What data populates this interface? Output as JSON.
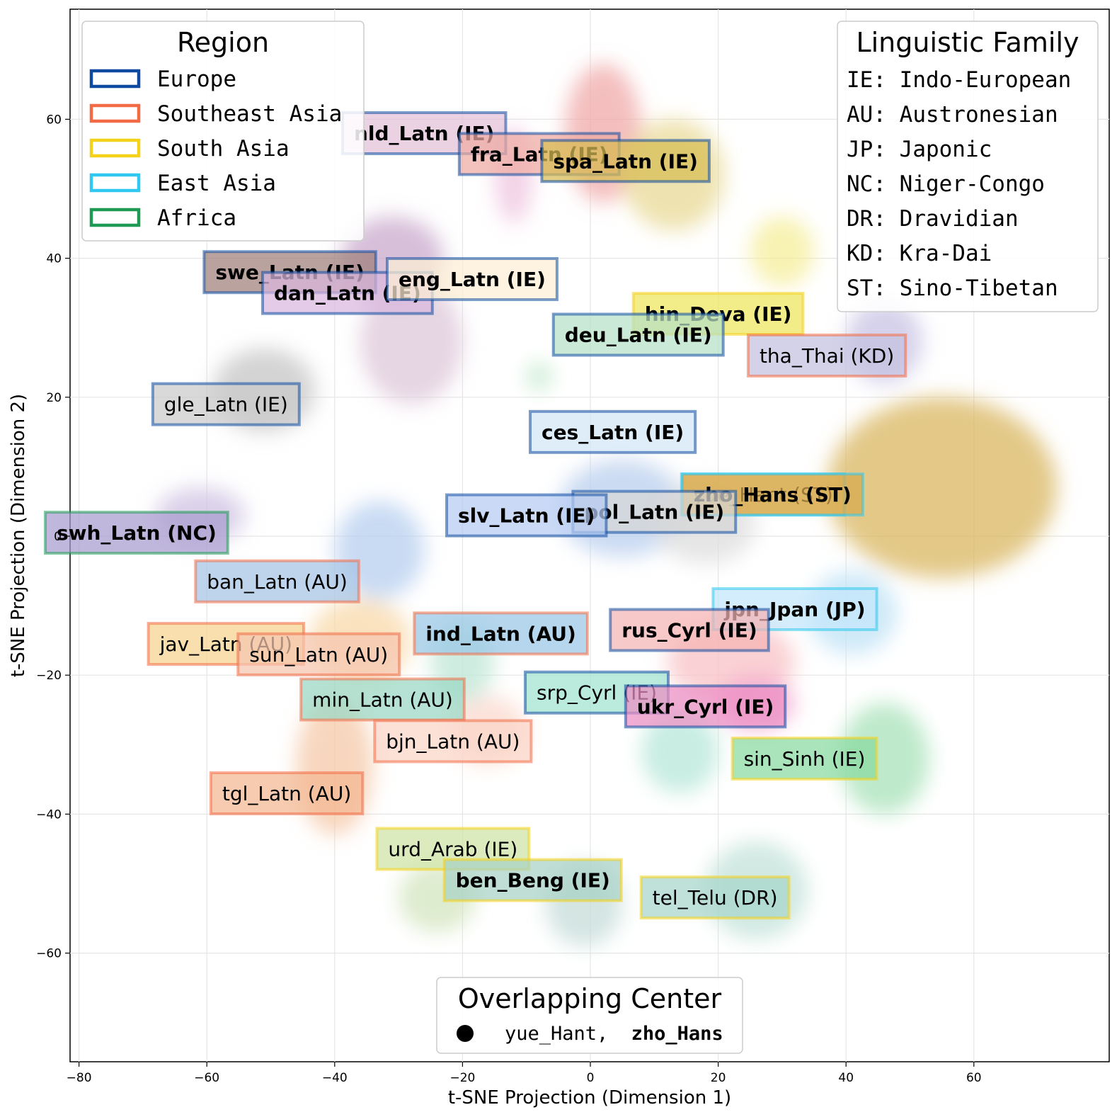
{
  "chart_data": {
    "type": "scatter",
    "xlabel": "t-SNE Projection (Dimension 1)",
    "ylabel": "t-SNE Projection (Dimension 2)",
    "xlim": [
      -82,
      80
    ],
    "ylim": [
      -75,
      75
    ],
    "xticks": [
      -80,
      -60,
      -40,
      -20,
      0,
      20,
      40,
      60
    ],
    "yticks": [
      -60,
      -40,
      -20,
      0,
      20,
      40,
      60
    ],
    "tick_labels_x": [
      "−80",
      "−60",
      "−40",
      "−20",
      "0",
      "20",
      "40",
      "60"
    ],
    "tick_labels_y": [
      "−60",
      "−40",
      "−20",
      "0",
      "20",
      "40",
      "60"
    ],
    "grid": true,
    "region_colors": {
      "Europe": "#0d4aa0",
      "Southeast Asia": "#f26b45",
      "South Asia": "#f5d21a",
      "East Asia": "#2ec8f0",
      "Africa": "#1f9a55"
    },
    "labels": [
      {
        "text": "nld_Latn (IE)",
        "x": -26,
        "y": 58,
        "region": "Europe",
        "fill": "#e3c0d8",
        "bold": true
      },
      {
        "text": "fra_Latn (IE)",
        "x": -8,
        "y": 55,
        "region": "Europe",
        "fill": "#efaaa2",
        "bold": true
      },
      {
        "text": "spa_Latn (IE)",
        "x": 5.5,
        "y": 54,
        "region": "Europe",
        "fill": "#d8be55",
        "bold": true
      },
      {
        "text": "swe_Latn (IE)",
        "x": -47,
        "y": 38,
        "region": "Europe",
        "fill": "#a0807a",
        "bold": true
      },
      {
        "text": "dan_Latn (IE)",
        "x": -38,
        "y": 35,
        "region": "Europe",
        "fill": "#dab7de",
        "bold": true
      },
      {
        "text": "eng_Latn (IE)",
        "x": -18.5,
        "y": 37,
        "region": "Europe",
        "fill": "#fcefd4",
        "bold": true
      },
      {
        "text": "hin_Deva (IE)",
        "x": 20,
        "y": 32,
        "region": "South Asia",
        "fill": "#ede55b",
        "bold": true
      },
      {
        "text": "deu_Latn (IE)",
        "x": 7.5,
        "y": 29,
        "region": "Europe",
        "fill": "#b6e0c6",
        "bold": true
      },
      {
        "text": "tha_Thai (KD)",
        "x": 37,
        "y": 26,
        "region": "Southeast Asia",
        "fill": "#c3c0e0",
        "bold": false
      },
      {
        "text": "gle_Latn (IE)",
        "x": -57,
        "y": 19,
        "region": "Europe",
        "fill": "#cacaca",
        "bold": false
      },
      {
        "text": "ces_Latn (IE)",
        "x": 3.5,
        "y": 15,
        "region": "Europe",
        "fill": "#d2e6f6",
        "bold": true
      },
      {
        "text": "yue_Hant (ST)",
        "x": 27,
        "y": 6,
        "region": "East Asia",
        "fill": "#e8c67a",
        "bold": false
      },
      {
        "text": "zho_Hans (ST)",
        "x": 28.5,
        "y": 6,
        "region": "East Asia",
        "fill": "#d7a94e",
        "bold": true
      },
      {
        "text": "pol_Latn (IE)",
        "x": 10,
        "y": 3.5,
        "region": "Europe",
        "fill": "#d6d6d6",
        "bold": true
      },
      {
        "text": "slv_Latn (IE)",
        "x": -10,
        "y": 3,
        "region": "Europe",
        "fill": "#b5ccf2",
        "bold": true
      },
      {
        "text": "swh_Latn (NC)",
        "x": -71,
        "y": 0.5,
        "region": "Africa",
        "fill": "#a89bcf",
        "bold": true
      },
      {
        "text": "ban_Latn (AU)",
        "x": -49,
        "y": -6.5,
        "region": "Southeast Asia",
        "fill": "#a5c3e5",
        "bold": false
      },
      {
        "text": "jpn_Jpan (JP)",
        "x": 32,
        "y": -10.5,
        "region": "East Asia",
        "fill": "#c3e6fb",
        "bold": true
      },
      {
        "text": "rus_Cyrl (IE)",
        "x": 15.5,
        "y": -13.5,
        "region": "Europe",
        "fill": "#f5b4b4",
        "bold": true
      },
      {
        "text": "ind_Latn (AU)",
        "x": -14,
        "y": -14,
        "region": "Southeast Asia",
        "fill": "#99c6e6",
        "bold": true
      },
      {
        "text": "jav_Latn (AU)",
        "x": -57,
        "y": -15.5,
        "region": "Southeast Asia",
        "fill": "#f7d28e",
        "bold": false
      },
      {
        "text": "sun_Latn (AU)",
        "x": -42.5,
        "y": -17,
        "region": "Southeast Asia",
        "fill": "#f5c6b0",
        "bold": false
      },
      {
        "text": "srp_Cyrl (IE)",
        "x": 1,
        "y": -22.5,
        "region": "Europe",
        "fill": "#9fe3cf",
        "bold": false
      },
      {
        "text": "min_Latn (AU)",
        "x": -32.5,
        "y": -23.5,
        "region": "Southeast Asia",
        "fill": "#98d7c3",
        "bold": false
      },
      {
        "text": "ukr_Cyrl (IE)",
        "x": 18,
        "y": -24.5,
        "region": "Europe",
        "fill": "#ec8ec4",
        "bold": true
      },
      {
        "text": "bjn_Latn (AU)",
        "x": -21.5,
        "y": -29.5,
        "region": "Southeast Asia",
        "fill": "#fbd5c7",
        "bold": false
      },
      {
        "text": "sin_Sinh (IE)",
        "x": 33.5,
        "y": -32,
        "region": "South Asia",
        "fill": "#88d9a0",
        "bold": false
      },
      {
        "text": "tgl_Latn (AU)",
        "x": -47.5,
        "y": -37,
        "region": "Southeast Asia",
        "fill": "#f2b792",
        "bold": false
      },
      {
        "text": "urd_Arab (IE)",
        "x": -21.5,
        "y": -45,
        "region": "South Asia",
        "fill": "#cde3a3",
        "bold": false
      },
      {
        "text": "ben_Beng (IE)",
        "x": -9,
        "y": -49.5,
        "region": "South Asia",
        "fill": "#a8d1c5",
        "bold": true
      },
      {
        "text": "tel_Telu (DR)",
        "x": 19.5,
        "y": -52,
        "region": "South Asia",
        "fill": "#a6d5cb",
        "bold": false
      }
    ],
    "clusters": [
      {
        "x": 55,
        "y": 7,
        "rx": 18,
        "ry": 13,
        "color": "#d9b560"
      },
      {
        "x": 2,
        "y": 58,
        "rx": 6,
        "ry": 10,
        "color": "#f0a8a8"
      },
      {
        "x": 13,
        "y": 52,
        "rx": 8,
        "ry": 8,
        "color": "#e8da95"
      },
      {
        "x": -31,
        "y": 40,
        "rx": 8,
        "ry": 6,
        "color": "#c9a9cc"
      },
      {
        "x": -28,
        "y": 28,
        "rx": 8,
        "ry": 9,
        "color": "#ddc7d8"
      },
      {
        "x": -12,
        "y": 52,
        "rx": 3,
        "ry": 7,
        "color": "#efc4df"
      },
      {
        "x": 30,
        "y": 41,
        "rx": 5,
        "ry": 5,
        "color": "#f6ed9a"
      },
      {
        "x": 46,
        "y": 28,
        "rx": 6,
        "ry": 6,
        "color": "#c9c3e4"
      },
      {
        "x": -51,
        "y": 21,
        "rx": 8,
        "ry": 6,
        "color": "#c6c6c6"
      },
      {
        "x": -61,
        "y": 3,
        "rx": 7,
        "ry": 4,
        "color": "#cfc2e2"
      },
      {
        "x": -33,
        "y": -2,
        "rx": 7,
        "ry": 7,
        "color": "#b7cfef"
      },
      {
        "x": 5,
        "y": 4,
        "rx": 10,
        "ry": 7,
        "color": "#b9cfee"
      },
      {
        "x": 18,
        "y": 2,
        "rx": 8,
        "ry": 6,
        "color": "#dddddd"
      },
      {
        "x": 41,
        "y": -11,
        "rx": 7,
        "ry": 6,
        "color": "#bfe2f6"
      },
      {
        "x": 22,
        "y": -18,
        "rx": 10,
        "ry": 6,
        "color": "#f8c2c6"
      },
      {
        "x": 26,
        "y": -24,
        "rx": 6,
        "ry": 4,
        "color": "#f3a7cf"
      },
      {
        "x": 14,
        "y": -31,
        "rx": 6,
        "ry": 6,
        "color": "#b7e7d8"
      },
      {
        "x": 46,
        "y": -32,
        "rx": 7,
        "ry": 8,
        "color": "#a8e1b9"
      },
      {
        "x": -40,
        "y": -33,
        "rx": 6,
        "ry": 10,
        "color": "#f5c8a8"
      },
      {
        "x": -36,
        "y": -15,
        "rx": 8,
        "ry": 6,
        "color": "#f8d8a8"
      },
      {
        "x": -20,
        "y": -18,
        "rx": 5,
        "ry": 6,
        "color": "#bfe5d6"
      },
      {
        "x": -16,
        "y": -28,
        "rx": 6,
        "ry": 5,
        "color": "#fbd8cd"
      },
      {
        "x": -24,
        "y": -52,
        "rx": 6,
        "ry": 5,
        "color": "#d2e4bd"
      },
      {
        "x": -1,
        "y": -53,
        "rx": 6,
        "ry": 6,
        "color": "#c6dcd8"
      },
      {
        "x": 26,
        "y": -51,
        "rx": 8,
        "ry": 7,
        "color": "#c2e2d8"
      },
      {
        "x": -8,
        "y": 23,
        "rx": 2,
        "ry": 2,
        "color": "#bfe5c8"
      }
    ],
    "legend_region": {
      "title": "Region",
      "entries": [
        {
          "label": "Europe",
          "color": "#0d4aa0"
        },
        {
          "label": "Southeast Asia",
          "color": "#f26b45"
        },
        {
          "label": "South Asia",
          "color": "#f5d21a"
        },
        {
          "label": "East Asia",
          "color": "#2ec8f0"
        },
        {
          "label": "Africa",
          "color": "#1f9a55"
        }
      ],
      "placement": "top-left"
    },
    "legend_family": {
      "title": "Linguistic Family",
      "entries": [
        "IE: Indo-European",
        "AU: Austronesian",
        "JP: Japonic",
        "NC: Niger-Congo",
        "DR: Dravidian",
        "KD: Kra-Dai",
        "ST: Sino-Tibetan"
      ],
      "placement": "top-right"
    },
    "legend_overlap": {
      "title": "Overlapping Center",
      "entry_regular": "yue_Hant,",
      "entry_bold": "zho_Hans",
      "placement": "bottom-center"
    }
  }
}
